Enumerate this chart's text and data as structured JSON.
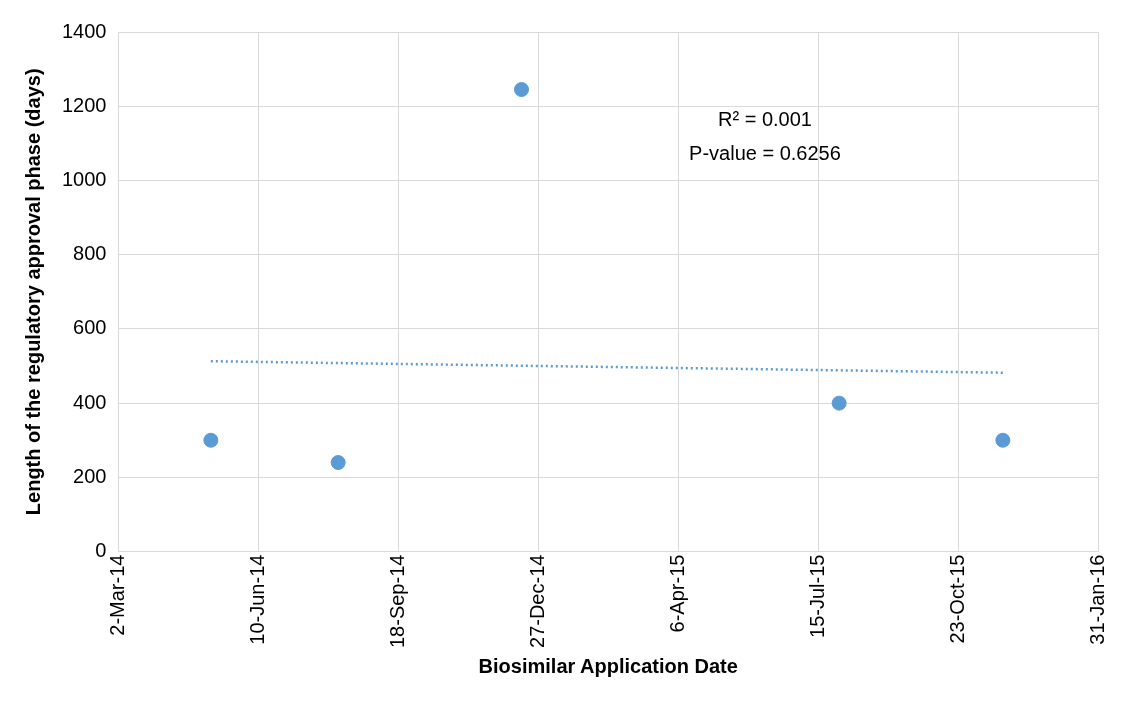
{
  "chart_data": {
    "type": "scatter",
    "xlabel": "Biosimilar Application Date",
    "ylabel": "Length of the regulatory approval phase (days)",
    "series": [
      {
        "color": "#5b9bd5",
        "marker": "circle",
        "x": [
          "2014-05-07",
          "2014-08-06",
          "2014-12-15",
          "2015-07-30",
          "2015-11-24"
        ],
        "values": [
          300,
          240,
          1245,
          400,
          300
        ]
      },
      {
        "type": "line",
        "color": "#5b9bd5",
        "line_style": "dotted",
        "marker": "none",
        "x": [
          "2014-05-07",
          "2015-11-24"
        ],
        "values": [
          513,
          482
        ]
      }
    ],
    "xlim": [
      "2014-03-02",
      "2016-01-31"
    ],
    "xticks": [
      {
        "value": "2014-03-02",
        "label": "2-Mar-14"
      },
      {
        "value": "2014-06-10",
        "label": "10-Jun-14"
      },
      {
        "value": "2014-09-18",
        "label": "18-Sep-14"
      },
      {
        "value": "2014-12-27",
        "label": "27-Dec-14"
      },
      {
        "value": "2015-04-06",
        "label": "6-Apr-15"
      },
      {
        "value": "2015-07-15",
        "label": "15-Jul-15"
      },
      {
        "value": "2015-10-23",
        "label": "23-Oct-15"
      },
      {
        "value": "2016-01-31",
        "label": "31-Jan-16"
      }
    ],
    "ylim": [
      0,
      1400
    ],
    "yticks": [
      0,
      200,
      400,
      600,
      800,
      1000,
      1200,
      1400
    ],
    "grid": true,
    "legend": false,
    "annotations": [
      "R² = 0.001",
      "P-value = 0.6256"
    ]
  }
}
